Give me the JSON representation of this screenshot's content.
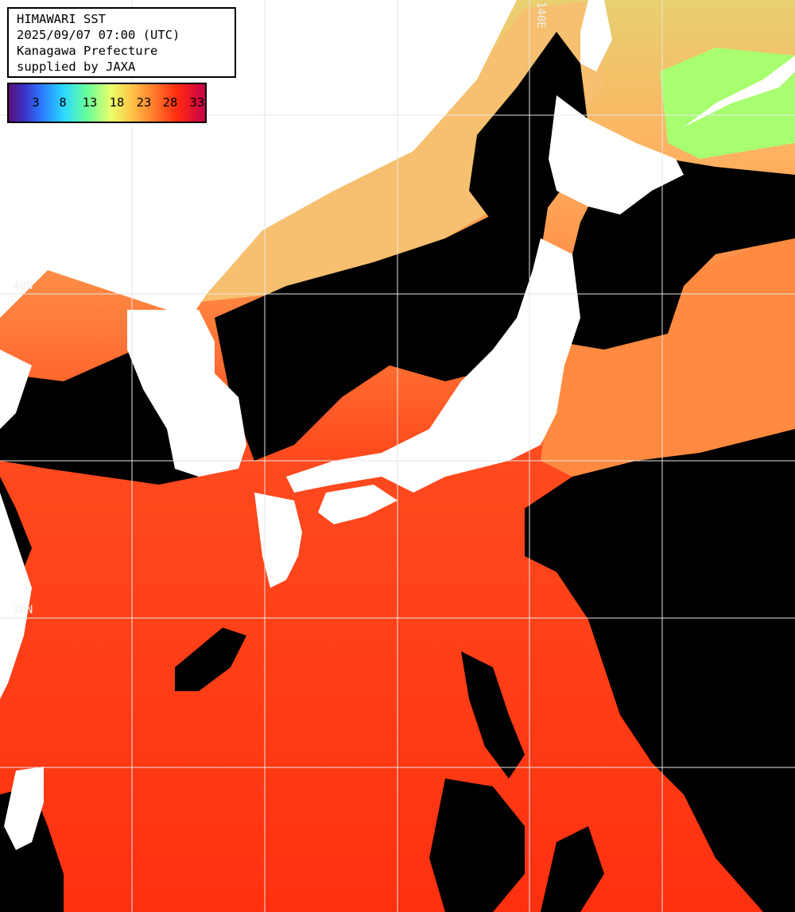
{
  "info": {
    "line1": "HIMAWARI SST",
    "line2": "2025/09/07 07:00 (UTC)",
    "line3": "Kanagawa Prefecture",
    "line4": "supplied by JAXA"
  },
  "legend": {
    "ticks": [
      "3",
      "8",
      "13",
      "18",
      "23",
      "28",
      "33"
    ]
  },
  "grid_labels": {
    "lon_top": "140E",
    "lat_upper": "40N",
    "lat_lower": "30N"
  },
  "colors": {
    "cloud_mask": "#000000",
    "land": "#ffffff",
    "warm_sea": "#ff3a10",
    "mid_sea": "#ff8a3a",
    "cool_sea": "#f4c060",
    "cold_sea": "#a8ff70",
    "grid": "#e6e6e6"
  }
}
